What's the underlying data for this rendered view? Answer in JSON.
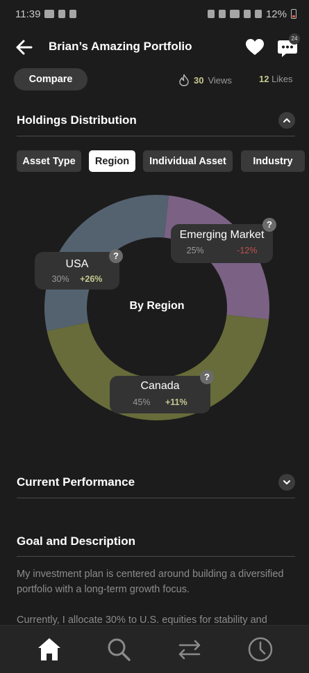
{
  "status_bar": {
    "time": "11:39",
    "battery": "12%"
  },
  "header": {
    "title": "Brian’s Amazing Portfolio",
    "notification_count": "24"
  },
  "stats": {
    "compare_label": "Compare",
    "views_count": "30",
    "views_label": "Views",
    "likes_count": "12",
    "likes_label": "Likes"
  },
  "holdings": {
    "title": "Holdings Distribution",
    "tabs": [
      {
        "label": "Asset Type",
        "active": false
      },
      {
        "label": "Region",
        "active": true
      },
      {
        "label": "Individual Asset",
        "active": false
      },
      {
        "label": "Industry",
        "active": false
      }
    ],
    "chart_center_label": "By Region",
    "help_glyph": "?"
  },
  "chart_data": {
    "type": "pie",
    "categories": [
      "Emerging Market",
      "Canada",
      "USA"
    ],
    "values": [
      25,
      45,
      30
    ],
    "percent_labels": [
      "25%",
      "45%",
      "30%"
    ],
    "changes": [
      "-12%",
      "+11%",
      "+26%"
    ],
    "colors": [
      "#7b6284",
      "#676c3a",
      "#546270"
    ]
  },
  "performance": {
    "title": "Current Performance"
  },
  "goal": {
    "title": "Goal and Description",
    "paragraph1": "My investment plan is centered around building a diversified portfolio with a long-term growth focus.",
    "paragraph2": "Currently, I allocate 30% to U.S. equities for stability and"
  },
  "nav": {
    "items": [
      "home-icon",
      "search-icon",
      "transfer-icon",
      "history-icon"
    ],
    "active_color": "#ffffff",
    "inactive_color": "#8a8a8a"
  }
}
